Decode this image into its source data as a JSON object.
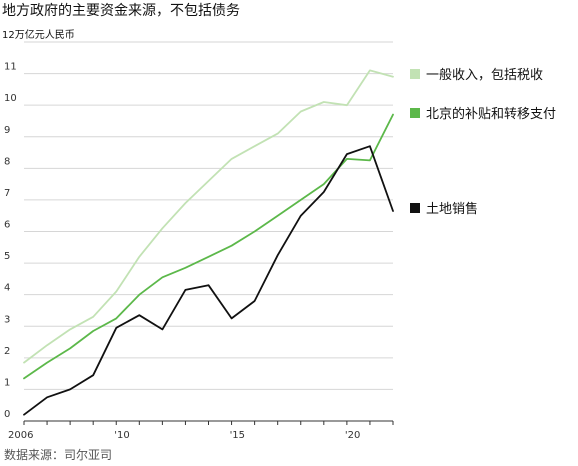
{
  "title": "地方政府的主要资金来源，不包括债务",
  "source": "数据来源：司尔亚司",
  "colors": {
    "general_income": "#c2e2b4",
    "transfers": "#5cb84a",
    "land_sales": "#111111",
    "grid": "#d6d6d6",
    "axis": "#333333"
  },
  "chart_data": {
    "type": "line",
    "title": "地方政府的主要资金来源，不包括债务",
    "unit_label": "12万亿元人民币",
    "xlabel": "",
    "ylabel": "万亿元人民币",
    "xlim": [
      2006,
      2022
    ],
    "ylim": [
      0,
      12
    ],
    "grid": true,
    "legend_position": "right",
    "x": [
      2006,
      2007,
      2008,
      2009,
      2010,
      2011,
      2012,
      2013,
      2014,
      2015,
      2016,
      2017,
      2018,
      2019,
      2020,
      2021,
      2022
    ],
    "x_ticks": [
      {
        "value": 2006,
        "label": "2006"
      },
      {
        "value": 2010,
        "label": "'10"
      },
      {
        "value": 2015,
        "label": "'15"
      },
      {
        "value": 2020,
        "label": "'20"
      }
    ],
    "y_ticks": [
      {
        "value": 11,
        "label": "11"
      },
      {
        "value": 10,
        "label": "10"
      },
      {
        "value": 9,
        "label": "9"
      },
      {
        "value": 8,
        "label": "8"
      },
      {
        "value": 7,
        "label": "7"
      },
      {
        "value": 6,
        "label": "6"
      },
      {
        "value": 5,
        "label": "5"
      },
      {
        "value": 4,
        "label": "4"
      },
      {
        "value": 3,
        "label": "3"
      },
      {
        "value": 2,
        "label": "2"
      },
      {
        "value": 1,
        "label": "1"
      },
      {
        "value": 0,
        "label": "0"
      }
    ],
    "series": [
      {
        "key": "general_income",
        "name": "一般收入，包括税收",
        "color": "#c2e2b4",
        "values": [
          1.85,
          2.4,
          2.9,
          3.3,
          4.1,
          5.2,
          6.1,
          6.9,
          7.6,
          8.3,
          8.7,
          9.1,
          9.8,
          10.1,
          10.0,
          11.1,
          10.9
        ]
      },
      {
        "key": "transfers",
        "name": "北京的补贴和转移支付",
        "color": "#5cb84a",
        "values": [
          1.35,
          1.85,
          2.3,
          2.85,
          3.25,
          4.0,
          4.55,
          4.85,
          5.2,
          5.55,
          6.0,
          6.5,
          7.0,
          7.5,
          8.3,
          8.25,
          9.7
        ]
      },
      {
        "key": "land_sales",
        "name": "土地销售",
        "color": "#111111",
        "values": [
          0.2,
          0.75,
          1.0,
          1.45,
          2.95,
          3.35,
          2.9,
          4.15,
          4.3,
          3.25,
          3.8,
          5.25,
          6.5,
          7.25,
          8.45,
          8.7,
          6.65
        ]
      }
    ]
  }
}
